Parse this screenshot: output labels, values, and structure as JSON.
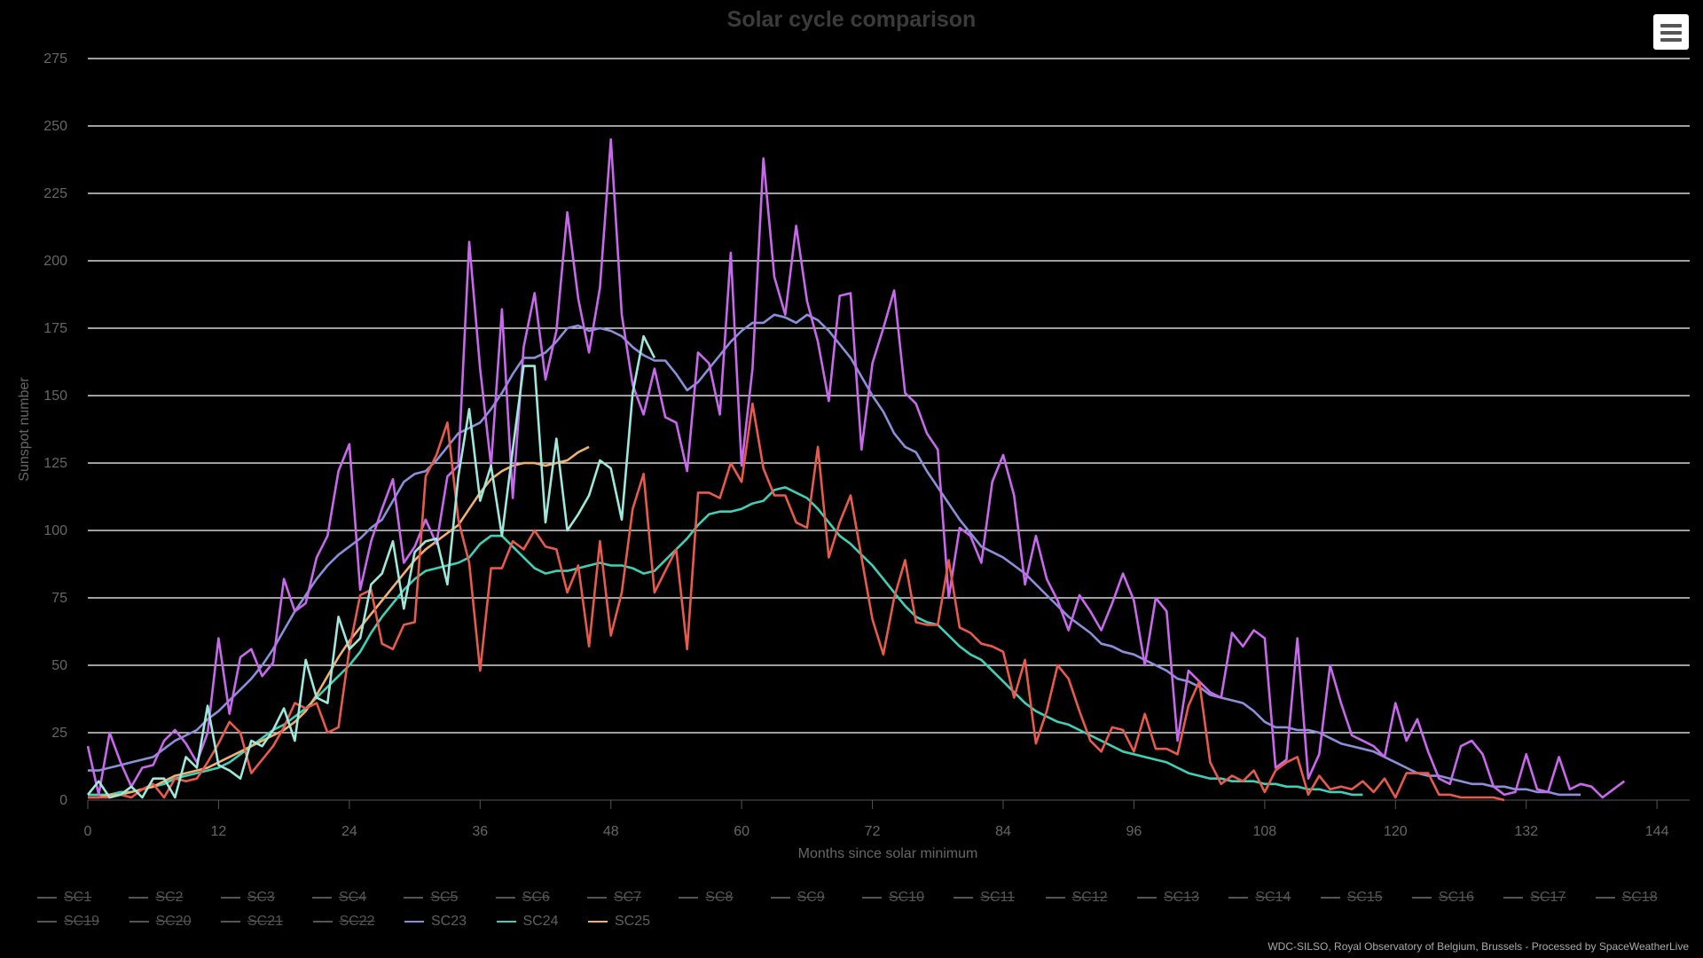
{
  "chart_data": {
    "type": "line",
    "title": "Solar cycle comparison",
    "xlabel": "Months since solar minimum",
    "ylabel": "Sunspot number",
    "xlim": [
      0,
      147
    ],
    "ylim": [
      0,
      275
    ],
    "xticks": [
      0,
      12,
      24,
      36,
      48,
      60,
      72,
      84,
      96,
      108,
      120,
      132,
      144
    ],
    "yticks": [
      0,
      25,
      50,
      75,
      100,
      125,
      150,
      175,
      200,
      225,
      250,
      275
    ],
    "grid": true,
    "legend_position": "bottom",
    "legend_hidden_series": [
      "SC1",
      "SC2",
      "SC3",
      "SC4",
      "SC5",
      "SC6",
      "SC7",
      "SC8",
      "SC9",
      "SC10",
      "SC11",
      "SC12",
      "SC13",
      "SC14",
      "SC15",
      "SC16",
      "SC17",
      "SC18",
      "SC19",
      "SC20",
      "SC21",
      "SC22"
    ],
    "series": [
      {
        "name": "SC23",
        "color": "#8a8fd8",
        "x_step": 1,
        "values": [
          11,
          11,
          12,
          13,
          14,
          15,
          16,
          19,
          22,
          24,
          26,
          30,
          33,
          37,
          41,
          45,
          50,
          56,
          63,
          70,
          76,
          82,
          87,
          91,
          94,
          97,
          101,
          104,
          111,
          118,
          121,
          122,
          126,
          131,
          136,
          138,
          140,
          145,
          151,
          158,
          164,
          164,
          166,
          170,
          175,
          176,
          174,
          175,
          174,
          172,
          168,
          165,
          163,
          163,
          158,
          152,
          155,
          160,
          165,
          170,
          174,
          177,
          177,
          180,
          179,
          177,
          180,
          178,
          174,
          169,
          164,
          157,
          150,
          144,
          136,
          131,
          129,
          122,
          116,
          110,
          104,
          99,
          94,
          92,
          90,
          87,
          84,
          80,
          76,
          72,
          68,
          65,
          62,
          58,
          57,
          55,
          54,
          52,
          50,
          48,
          45,
          44,
          42,
          39,
          38,
          37,
          36,
          33,
          29,
          27,
          27,
          26,
          26,
          25,
          23,
          21,
          20,
          19,
          18,
          16,
          14,
          12,
          10,
          9,
          9,
          8,
          7,
          6,
          6,
          5,
          5,
          4,
          4,
          3,
          3,
          2,
          2,
          2
        ]
      },
      {
        "name": "SC24",
        "color": "#40d0b8",
        "x_step": 1,
        "values": [
          2,
          2,
          2,
          3,
          3,
          4,
          5,
          6,
          8,
          9,
          10,
          11,
          12,
          14,
          17,
          20,
          23,
          26,
          28,
          31,
          34,
          38,
          42,
          46,
          50,
          55,
          62,
          68,
          73,
          78,
          82,
          85,
          86,
          87,
          88,
          90,
          95,
          98,
          98,
          94,
          90,
          86,
          84,
          85,
          85,
          86,
          87,
          88,
          87,
          87,
          86,
          84,
          85,
          89,
          93,
          97,
          102,
          106,
          107,
          107,
          108,
          110,
          111,
          115,
          116,
          114,
          112,
          108,
          103,
          98,
          95,
          91,
          87,
          82,
          77,
          72,
          68,
          66,
          65,
          61,
          57,
          54,
          52,
          48,
          44,
          40,
          36,
          33,
          31,
          29,
          28,
          26,
          24,
          22,
          20,
          18,
          17,
          16,
          15,
          14,
          12,
          10,
          9,
          8,
          8,
          7,
          7,
          7,
          6,
          6,
          5,
          5,
          4,
          4,
          3,
          3,
          2,
          2
        ]
      },
      {
        "name": "SC25",
        "color": "#f0b070",
        "x_step": 1,
        "values": [
          1,
          1,
          2,
          2,
          3,
          4,
          5,
          7,
          9,
          10,
          11,
          12,
          14,
          16,
          18,
          20,
          22,
          24,
          26,
          29,
          33,
          39,
          46,
          53,
          59,
          64,
          69,
          74,
          79,
          84,
          89,
          93,
          96,
          99,
          102,
          108,
          114,
          119,
          122,
          124,
          125,
          125,
          124,
          125,
          126,
          129,
          131
        ]
      },
      {
        "name": "SC23 monthly",
        "color": "#c868ec",
        "legend": false,
        "x_step": 1,
        "values": [
          20,
          2,
          25,
          14,
          5,
          12,
          13,
          22,
          26,
          21,
          14,
          25,
          60,
          32,
          53,
          56,
          46,
          51,
          82,
          70,
          73,
          90,
          98,
          122,
          132,
          78,
          96,
          108,
          119,
          88,
          94,
          104,
          95,
          120,
          124,
          207,
          160,
          124,
          182,
          112,
          168,
          188,
          156,
          174,
          218,
          186,
          166,
          190,
          245,
          180,
          154,
          143,
          160,
          142,
          140,
          122,
          166,
          162,
          143,
          203,
          124,
          160,
          238,
          194,
          180,
          213,
          185,
          170,
          148,
          187,
          188,
          130,
          162,
          175,
          189,
          151,
          147,
          136,
          130,
          75,
          101,
          98,
          88,
          118,
          128,
          113,
          80,
          98,
          82,
          74,
          63,
          76,
          70,
          63,
          73,
          84,
          74,
          50,
          75,
          70,
          22,
          48,
          44,
          40,
          38,
          62,
          57,
          63,
          60,
          12,
          15,
          60,
          8,
          17,
          50,
          36,
          24,
          22,
          20,
          16,
          36,
          22,
          30,
          18,
          8,
          6,
          20,
          22,
          17,
          5,
          2,
          3,
          17,
          4,
          3,
          16,
          4,
          6,
          5,
          1,
          4,
          7
        ]
      },
      {
        "name": "SC24 monthly",
        "color": "#9ee8dc",
        "legend": false,
        "x_step": 1,
        "values": [
          2,
          7,
          1,
          2,
          5,
          1,
          8,
          8,
          1,
          16,
          12,
          35,
          13,
          11,
          8,
          22,
          20,
          26,
          34,
          22,
          52,
          38,
          36,
          68,
          56,
          60,
          80,
          84,
          96,
          71,
          92,
          96,
          97,
          80,
          120,
          145,
          111,
          124,
          98,
          130,
          161,
          161,
          103,
          134,
          100,
          106,
          113,
          126,
          123,
          104,
          151,
          172,
          164
        ]
      },
      {
        "name": "SC25 monthly",
        "color": "#e85a4c",
        "legend": false,
        "x_step": 1,
        "values": [
          1,
          1,
          1,
          2,
          1,
          4,
          6,
          1,
          8,
          7,
          8,
          14,
          21,
          29,
          25,
          10,
          15,
          20,
          27,
          36,
          34,
          36,
          25,
          27,
          56,
          76,
          78,
          58,
          56,
          65,
          66,
          120,
          128,
          140,
          104,
          88,
          48,
          86,
          86,
          96,
          93,
          100,
          94,
          93,
          77,
          87,
          57,
          96,
          61,
          77,
          108,
          121,
          77,
          85,
          93,
          56,
          114,
          114,
          112,
          125,
          118,
          147,
          123,
          113,
          113,
          103,
          101,
          131,
          90,
          103,
          113,
          90,
          67,
          54,
          75,
          89,
          66,
          65,
          65,
          89,
          64,
          62,
          58,
          57,
          55,
          38,
          52,
          21,
          33,
          50,
          45,
          33,
          22,
          18,
          27,
          26,
          18,
          32,
          19,
          19,
          17,
          35,
          44,
          14,
          6,
          9,
          7,
          11,
          3,
          11,
          14,
          16,
          2,
          9,
          4,
          5,
          4,
          7,
          3,
          8,
          1,
          10,
          10,
          10,
          2,
          2,
          1,
          1,
          1,
          1,
          0
        ]
      }
    ]
  },
  "legend": {
    "rows": [
      [
        "SC1",
        "SC2",
        "SC3",
        "SC4",
        "SC5",
        "SC6",
        "SC7",
        "SC8",
        "SC9",
        "SC10",
        "SC11",
        "SC12",
        "SC13",
        "SC14",
        "SC15",
        "SC16",
        "SC17",
        "SC18"
      ],
      [
        "SC19",
        "SC20",
        "SC21",
        "SC22",
        "SC23",
        "SC24",
        "SC25"
      ]
    ],
    "active": {
      "SC23": "#8a8fd8",
      "SC24": "#40d0b8",
      "SC25": "#f0b070"
    },
    "inactive_color": "#555555"
  },
  "credits": "WDC-SILSO, Royal Observatory of Belgium, Brussels - Processed by SpaceWeatherLive",
  "menu_icon": "hamburger-menu-icon"
}
